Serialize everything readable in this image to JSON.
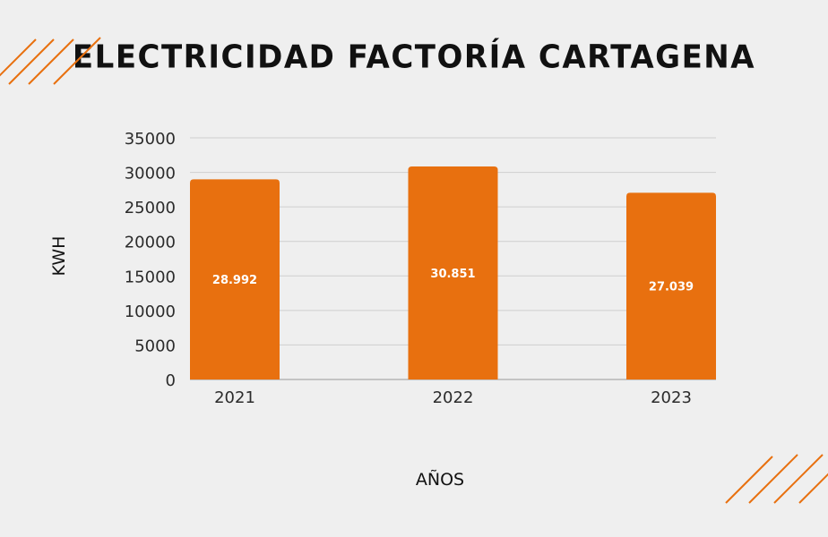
{
  "chart_data": {
    "type": "bar",
    "title": "ELECTRICIDAD FACTORÍA CARTAGENA",
    "categories": [
      "2021",
      "2022",
      "2023"
    ],
    "values": [
      28992,
      30851,
      27039
    ],
    "data_labels": [
      "28.992",
      "30.851",
      "27.039"
    ],
    "xlabel": "AÑOS",
    "ylabel": "KWH",
    "ylim": [
      0,
      35000
    ],
    "yticks": [
      0,
      5000,
      10000,
      15000,
      20000,
      25000,
      30000,
      35000
    ],
    "ytick_labels": [
      "0",
      "5000",
      "10000",
      "15000",
      "20000",
      "25000",
      "30000",
      "35000"
    ],
    "grid": true,
    "legend": "none",
    "bar_color": "#e8700f",
    "grid_color": "#cfcfcf",
    "accent_color": "#e8700f"
  }
}
